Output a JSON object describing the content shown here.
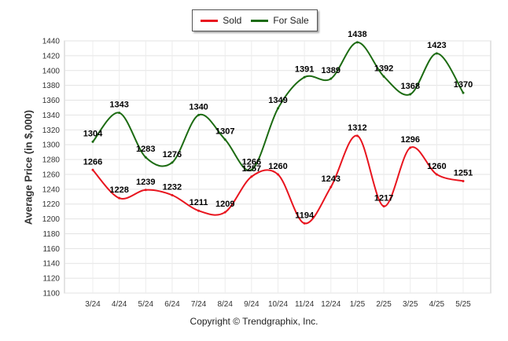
{
  "chart_data": {
    "type": "line",
    "categories": [
      "3/24",
      "4/24",
      "5/24",
      "6/24",
      "7/24",
      "8/24",
      "9/24",
      "10/24",
      "11/24",
      "12/24",
      "1/25",
      "2/25",
      "3/25",
      "4/25",
      "5/25"
    ],
    "series": [
      {
        "name": "Sold",
        "color": "#e8141e",
        "values": [
          1266,
          1228,
          1239,
          1232,
          1211,
          1209,
          1257,
          1260,
          1194,
          1243,
          1312,
          1217,
          1296,
          1260,
          1251
        ]
      },
      {
        "name": "For Sale",
        "color": "#1c6b12",
        "values": [
          1304,
          1343,
          1283,
          1276,
          1340,
          1307,
          1266,
          1349,
          1391,
          1389,
          1438,
          1392,
          1368,
          1423,
          1370
        ]
      }
    ],
    "ylabel": "Average Price (in $,000)",
    "ylim": [
      1100,
      1440
    ],
    "yticks": [
      1100,
      1120,
      1140,
      1160,
      1180,
      1200,
      1220,
      1240,
      1260,
      1280,
      1300,
      1320,
      1340,
      1360,
      1380,
      1400,
      1420,
      1440
    ],
    "grid": true,
    "legend_position": "top-center",
    "footer": "Copyright © Trendgraphix, Inc."
  }
}
